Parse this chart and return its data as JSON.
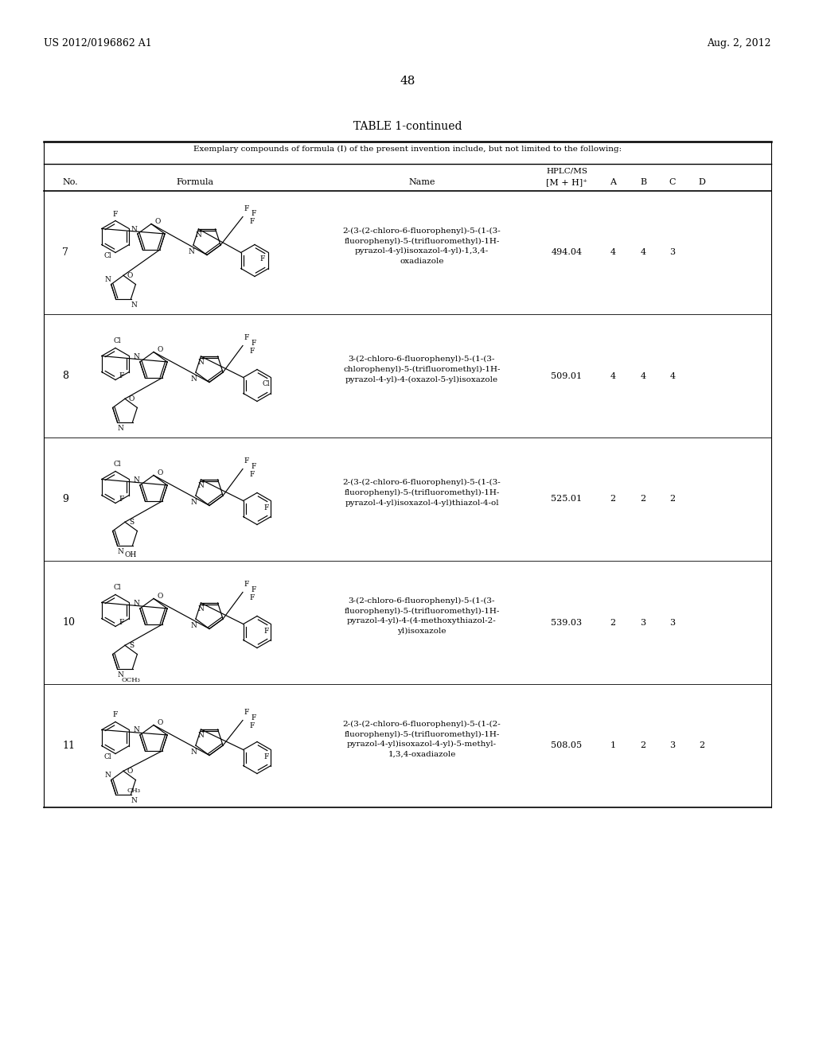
{
  "background_color": "#ffffff",
  "header_left": "US 2012/0196862 A1",
  "header_right": "Aug. 2, 2012",
  "page_number": "48",
  "table_title": "TABLE 1-continued",
  "table_subtitle": "Exemplary compounds of formula (I) of the present invention include, but not limited to the following:",
  "rows": [
    {
      "no": "7",
      "name": "2-(3-(2-chloro-6-fluorophenyl)-5-(1-(3-\nfluorophenyl)-5-(trifluoromethyl)-1H-\npyrazol-4-yl)isoxazol-4-yl)-1,3,4-\noxadiazole",
      "mz": "494.04",
      "A": "4",
      "B": "4",
      "C": "3",
      "D": ""
    },
    {
      "no": "8",
      "name": "3-(2-chloro-6-fluorophenyl)-5-(1-(3-\nchlorophenyl)-5-(trifluoromethyl)-1H-\npyrazol-4-yl)-4-(oxazol-5-yl)isoxazole",
      "mz": "509.01",
      "A": "4",
      "B": "4",
      "C": "4",
      "D": ""
    },
    {
      "no": "9",
      "name": "2-(3-(2-chloro-6-fluorophenyl)-5-(1-(3-\nfluorophenyl)-5-(trifluoromethyl)-1H-\npyrazol-4-yl)isoxazol-4-yl)thiazol-4-ol",
      "mz": "525.01",
      "A": "2",
      "B": "2",
      "C": "2",
      "D": ""
    },
    {
      "no": "10",
      "name": "3-(2-chloro-6-fluorophenyl)-5-(1-(3-\nfluorophenyl)-5-(trifluoromethyl)-1H-\npyrazol-4-yl)-4-(4-methoxythiazol-2-\nyl)isoxazole",
      "mz": "539.03",
      "A": "2",
      "B": "3",
      "C": "3",
      "D": ""
    },
    {
      "no": "11",
      "name": "2-(3-(2-chloro-6-fluorophenyl)-5-(1-(2-\nfluorophenyl)-5-(trifluoromethyl)-1H-\npyrazol-4-yl)isoxazol-4-yl)-5-methyl-\n1,3,4-oxadiazole",
      "mz": "508.05",
      "A": "1",
      "B": "2",
      "C": "3",
      "D": "2"
    }
  ]
}
